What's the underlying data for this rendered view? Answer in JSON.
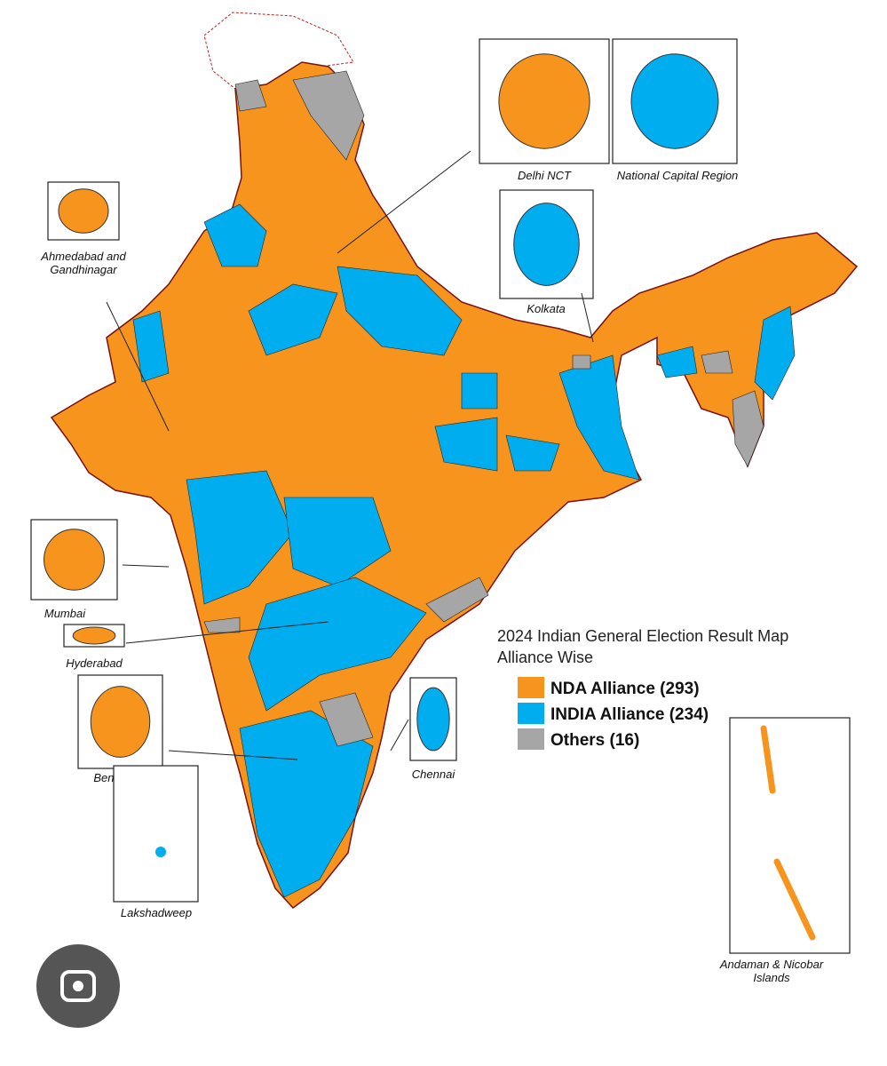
{
  "title": "2024 Indian General Election Result Map",
  "subtitle": "Alliance Wise",
  "legend": [
    {
      "label": "NDA Alliance (293)",
      "color": "#f7941d"
    },
    {
      "label": "INDIA Alliance (234)",
      "color": "#00aeef"
    },
    {
      "label": "Others (16)",
      "color": "#a6a6a6"
    }
  ],
  "insets": [
    {
      "lines": [
        "Delhi NCT"
      ]
    },
    {
      "lines": [
        "National Capital Region"
      ]
    },
    {
      "lines": [
        "Kolkata"
      ]
    },
    {
      "lines": [
        "Ahmedabad and",
        "Gandhinagar"
      ]
    },
    {
      "lines": [
        "Mumbai"
      ]
    },
    {
      "lines": [
        "Hyderabad"
      ]
    },
    {
      "lines": [
        "Bengaluru"
      ]
    },
    {
      "lines": [
        "Chennai"
      ]
    },
    {
      "lines": [
        "Lakshadweep"
      ]
    },
    {
      "lines": [
        "Andaman & Nicobar",
        "Islands"
      ]
    }
  ]
}
